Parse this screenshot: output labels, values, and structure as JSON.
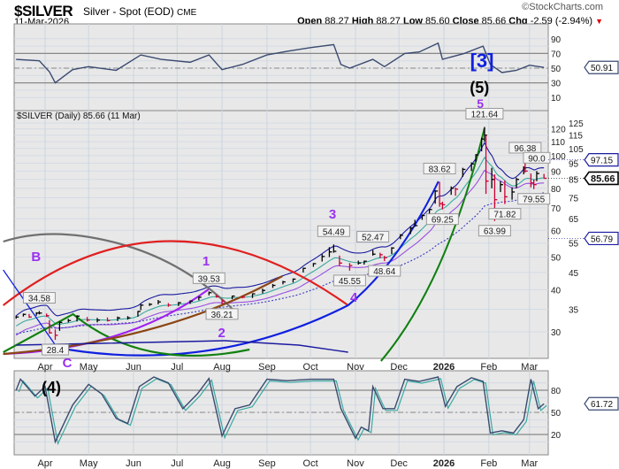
{
  "header": {
    "symbol": "$SILVER",
    "description": "Silver - Spot (EOD)",
    "exchange": "CME",
    "date": "11-Mar-2026",
    "brand": "©StockCharts.com",
    "open_label": "Open",
    "open": "88.27",
    "high_label": "High",
    "high": "88.27",
    "low_label": "Low",
    "low": "85.60",
    "close_label": "Close",
    "close": "85.66",
    "chg_label": "Chg",
    "chg": "-2.59 (-2.94%)",
    "chg_direction": "down"
  },
  "colors": {
    "up_bar": "#000000",
    "down_bar": "#cc0033",
    "ma_navy": "#1a1aa0",
    "ma_teal": "#3aaaa0",
    "ma_purple": "#9a50e0",
    "ma_dotted": "#3a3ac0",
    "annotation": "#9a30f0",
    "rsi_line": "#3a4a70",
    "panel_bg": "#e8e8e8"
  },
  "chart_data": [
    {
      "type": "line",
      "panel": "rsi",
      "ylim": [
        0,
        100
      ],
      "y_ticks": [
        10,
        30,
        50,
        70,
        90
      ],
      "levels": [
        30,
        50,
        70
      ],
      "last_value_tag": "50.91",
      "values": [
        [
          "2025-03-12",
          62
        ],
        [
          "2025-03-28",
          60
        ],
        [
          "2025-04-04",
          45
        ],
        [
          "2025-04-08",
          30
        ],
        [
          "2025-04-20",
          48
        ],
        [
          "2025-05-01",
          52
        ],
        [
          "2025-05-20",
          47
        ],
        [
          "2025-06-06",
          68
        ],
        [
          "2025-06-20",
          62
        ],
        [
          "2025-07-10",
          58
        ],
        [
          "2025-07-23",
          68
        ],
        [
          "2025-08-01",
          48
        ],
        [
          "2025-08-15",
          55
        ],
        [
          "2025-09-01",
          68
        ],
        [
          "2025-09-15",
          73
        ],
        [
          "2025-10-01",
          78
        ],
        [
          "2025-10-17",
          82
        ],
        [
          "2025-10-22",
          55
        ],
        [
          "2025-10-28",
          50
        ],
        [
          "2025-11-13",
          62
        ],
        [
          "2025-11-21",
          52
        ],
        [
          "2025-12-05",
          70
        ],
        [
          "2025-12-15",
          72
        ],
        [
          "2025-12-28",
          84
        ],
        [
          "2025-12-31",
          62
        ],
        [
          "2026-01-15",
          70
        ],
        [
          "2026-01-28",
          80
        ],
        [
          "2026-02-02",
          55
        ],
        [
          "2026-02-10",
          44
        ],
        [
          "2026-02-20",
          47
        ],
        [
          "2026-03-01",
          54
        ],
        [
          "2026-03-11",
          50.91
        ]
      ]
    },
    {
      "type": "ohlc",
      "panel": "price",
      "title": "$SILVER (Daily) 85.66 (11 Mar)",
      "y_scale": "log",
      "ylim": [
        25,
        130
      ],
      "y_ticks": [
        30,
        35,
        40,
        45,
        50,
        55,
        60,
        65,
        70,
        75,
        80,
        85,
        90,
        95,
        100,
        105,
        110,
        115,
        120,
        125
      ],
      "x_ticks": [
        "Apr",
        "May",
        "Jun",
        "Jul",
        "Aug",
        "Sep",
        "Oct",
        "Nov",
        "Dec",
        "2026",
        "Feb",
        "Mar"
      ],
      "bars": [
        [
          "2025-03-12",
          33.5,
          32.8,
          33.2
        ],
        [
          "2025-03-17",
          34.0,
          33.3,
          33.8
        ],
        [
          "2025-03-21",
          33.9,
          33.0,
          33.2
        ],
        [
          "2025-03-26",
          34.3,
          33.5,
          34.1
        ],
        [
          "2025-03-28",
          34.58,
          33.8,
          34.1
        ],
        [
          "2025-04-02",
          34.0,
          33.2,
          33.5
        ],
        [
          "2025-04-04",
          32.5,
          29.6,
          29.8
        ],
        [
          "2025-04-08",
          30.5,
          28.4,
          29.3
        ],
        [
          "2025-04-11",
          32.2,
          30.2,
          32.0
        ],
        [
          "2025-04-17",
          32.8,
          32.0,
          32.4
        ],
        [
          "2025-04-23",
          33.6,
          32.2,
          33.4
        ],
        [
          "2025-04-30",
          33.2,
          32.2,
          32.5
        ],
        [
          "2025-05-07",
          33.0,
          32.0,
          32.5
        ],
        [
          "2025-05-14",
          33.1,
          32.2,
          32.4
        ],
        [
          "2025-05-21",
          33.3,
          32.3,
          33.0
        ],
        [
          "2025-05-28",
          33.4,
          32.6,
          33.0
        ],
        [
          "2025-06-04",
          34.6,
          33.3,
          34.5
        ],
        [
          "2025-06-06",
          36.3,
          34.8,
          36.0
        ],
        [
          "2025-06-12",
          36.5,
          35.8,
          36.2
        ],
        [
          "2025-06-18",
          37.3,
          36.2,
          36.8
        ],
        [
          "2025-06-25",
          36.5,
          35.6,
          36.0
        ],
        [
          "2025-07-02",
          36.8,
          35.8,
          36.6
        ],
        [
          "2025-07-10",
          37.2,
          36.3,
          37.0
        ],
        [
          "2025-07-16",
          38.2,
          37.2,
          38.0
        ],
        [
          "2025-07-23",
          39.53,
          38.5,
          39.2
        ],
        [
          "2025-07-28",
          38.6,
          37.9,
          38.1
        ],
        [
          "2025-08-01",
          37.5,
          36.21,
          37.0
        ],
        [
          "2025-08-08",
          38.4,
          37.5,
          38.3
        ],
        [
          "2025-08-15",
          38.4,
          37.7,
          38.0
        ],
        [
          "2025-08-22",
          39.0,
          37.8,
          38.9
        ],
        [
          "2025-08-29",
          40.3,
          39.0,
          39.8
        ],
        [
          "2025-09-05",
          41.6,
          40.5,
          41.2
        ],
        [
          "2025-09-12",
          42.5,
          41.5,
          42.2
        ],
        [
          "2025-09-19",
          43.2,
          42.0,
          43.0
        ],
        [
          "2025-09-26",
          46.5,
          45.0,
          46.3
        ],
        [
          "2025-10-03",
          48.0,
          46.8,
          47.8
        ],
        [
          "2025-10-09",
          51.0,
          48.5,
          50.2
        ],
        [
          "2025-10-14",
          53.5,
          50.0,
          51.8
        ],
        [
          "2025-10-17",
          54.49,
          51.5,
          52.0
        ],
        [
          "2025-10-21",
          50.5,
          47.0,
          48.0
        ],
        [
          "2025-10-28",
          48.0,
          45.55,
          47.2
        ],
        [
          "2025-11-03",
          48.8,
          47.5,
          48.0
        ],
        [
          "2025-11-07",
          48.8,
          47.5,
          48.6
        ],
        [
          "2025-11-13",
          52.47,
          50.5,
          51.0
        ],
        [
          "2025-11-18",
          51.5,
          49.6,
          50.8
        ],
        [
          "2025-11-21",
          50.4,
          48.64,
          49.8
        ],
        [
          "2025-11-26",
          53.5,
          51.0,
          53.2
        ],
        [
          "2025-12-02",
          58.5,
          56.5,
          58.0
        ],
        [
          "2025-12-09",
          61.5,
          58.5,
          61.0
        ],
        [
          "2025-12-12",
          64.5,
          61.5,
          62.0
        ],
        [
          "2025-12-17",
          66.8,
          64.5,
          66.4
        ],
        [
          "2025-12-22",
          69.5,
          67.0,
          69.2
        ],
        [
          "2025-12-26",
          79.0,
          72.0,
          78.5
        ],
        [
          "2025-12-29",
          83.62,
          70.5,
          72.0
        ],
        [
          "2025-12-31",
          73.0,
          69.25,
          71.5
        ],
        [
          "2026-01-06",
          81.0,
          76.5,
          80.0
        ],
        [
          "2026-01-09",
          80.5,
          76.0,
          79.5
        ],
        [
          "2026-01-14",
          92.0,
          86.5,
          91.0
        ],
        [
          "2026-01-20",
          95.5,
          90.0,
          94.5
        ],
        [
          "2026-01-23",
          101.0,
          96.0,
          100.5
        ],
        [
          "2026-01-27",
          113.0,
          103.0,
          112.0
        ],
        [
          "2026-01-29",
          121.64,
          110.0,
          115.0
        ],
        [
          "2026-01-30",
          115.0,
          77.0,
          84.0
        ],
        [
          "2026-02-03",
          92.0,
          80.0,
          85.0
        ],
        [
          "2026-02-05",
          88.0,
          63.99,
          74.0
        ],
        [
          "2026-02-09",
          84.0,
          78.0,
          82.0
        ],
        [
          "2026-02-12",
          84.5,
          71.82,
          75.5
        ],
        [
          "2026-02-17",
          80.5,
          74.0,
          78.0
        ],
        [
          "2026-02-20",
          86.0,
          80.0,
          85.0
        ],
        [
          "2026-02-25",
          93.0,
          88.0,
          92.0
        ],
        [
          "2026-02-26",
          96.38,
          89.0,
          90.0
        ],
        [
          "2026-03-02",
          88.5,
          80.5,
          83.0
        ],
        [
          "2026-03-04",
          85.0,
          79.55,
          82.0
        ],
        [
          "2026-03-06",
          90.0,
          84.0,
          88.5
        ],
        [
          "2026-03-11",
          88.27,
          85.6,
          85.66
        ]
      ],
      "price_labels": [
        [
          "2025-03-28",
          "34.58",
          34.58
        ],
        [
          "2025-04-08",
          "28.4",
          28.4
        ],
        [
          "2025-07-23",
          "39.53",
          39.53
        ],
        [
          "2025-08-01",
          "36.21",
          36.21
        ],
        [
          "2025-10-17",
          "54.49",
          54.49
        ],
        [
          "2025-10-28",
          "45.55",
          45.55
        ],
        [
          "2025-11-13",
          "52.47",
          52.47
        ],
        [
          "2025-11-21",
          "48.64",
          48.64
        ],
        [
          "2025-12-29",
          "83.62",
          83.62
        ],
        [
          "2025-12-31",
          "69.25",
          69.25
        ],
        [
          "2026-01-29",
          "121.64",
          121.64
        ],
        [
          "2026-02-05",
          "63.99",
          63.99
        ],
        [
          "2026-02-12",
          "71.82",
          71.82
        ],
        [
          "2026-02-26",
          "96.38",
          96.38
        ],
        [
          "2026-03-04",
          "79.55",
          79.55
        ],
        [
          "2026-03-06",
          "90.0",
          90.0
        ]
      ],
      "right_tags": {
        "upper_ma": "97.15",
        "close": "85.66",
        "long_ma": "56.79"
      },
      "wave_labels": {
        "B": "B",
        "C": "C",
        "w1": "1",
        "w2": "2",
        "w3": "3",
        "w4": "4",
        "w5": "5",
        "p4": "(4)",
        "p5": "(5)",
        "b3": "[3]"
      }
    },
    {
      "type": "line",
      "panel": "stochastic",
      "ylim": [
        0,
        100
      ],
      "y_ticks": [
        20,
        50,
        80
      ],
      "levels": [
        20,
        50,
        80
      ],
      "last_value_tag": "61.72",
      "values": [
        [
          "2025-03-12",
          80
        ],
        [
          "2025-03-15",
          95
        ],
        [
          "2025-03-25",
          72
        ],
        [
          "2025-04-01",
          85
        ],
        [
          "2025-04-08",
          10
        ],
        [
          "2025-04-20",
          60
        ],
        [
          "2025-05-01",
          88
        ],
        [
          "2025-05-10",
          75
        ],
        [
          "2025-05-20",
          42
        ],
        [
          "2025-05-28",
          35
        ],
        [
          "2025-06-05",
          85
        ],
        [
          "2025-06-15",
          98
        ],
        [
          "2025-06-25",
          90
        ],
        [
          "2025-07-05",
          55
        ],
        [
          "2025-07-15",
          75
        ],
        [
          "2025-07-23",
          96
        ],
        [
          "2025-08-01",
          18
        ],
        [
          "2025-08-10",
          55
        ],
        [
          "2025-08-20",
          60
        ],
        [
          "2025-09-01",
          95
        ],
        [
          "2025-09-15",
          93
        ],
        [
          "2025-10-01",
          95
        ],
        [
          "2025-10-17",
          95
        ],
        [
          "2025-10-22",
          55
        ],
        [
          "2025-11-01",
          15
        ],
        [
          "2025-11-05",
          30
        ],
        [
          "2025-11-10",
          25
        ],
        [
          "2025-11-13",
          85
        ],
        [
          "2025-11-20",
          55
        ],
        [
          "2025-11-28",
          55
        ],
        [
          "2025-12-05",
          95
        ],
        [
          "2025-12-15",
          92
        ],
        [
          "2025-12-28",
          98
        ],
        [
          "2026-01-02",
          58
        ],
        [
          "2026-01-10",
          85
        ],
        [
          "2026-01-20",
          97
        ],
        [
          "2026-01-28",
          92
        ],
        [
          "2026-02-02",
          22
        ],
        [
          "2026-02-10",
          25
        ],
        [
          "2026-02-18",
          22
        ],
        [
          "2026-02-25",
          40
        ],
        [
          "2026-03-02",
          95
        ],
        [
          "2026-03-07",
          55
        ],
        [
          "2026-03-11",
          61.72
        ]
      ]
    }
  ]
}
